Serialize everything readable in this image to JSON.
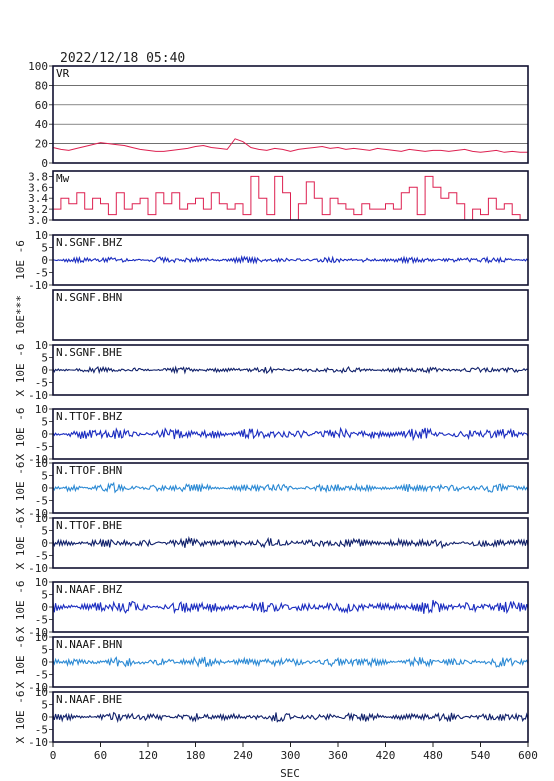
{
  "header": {
    "timestamp": "2022/12/18 05:40"
  },
  "chart_data": {
    "type": "line",
    "xlabel": "SEC",
    "xlim": [
      0,
      600
    ],
    "x_ticks": [
      "0",
      "60",
      "120",
      "180",
      "240",
      "300",
      "360",
      "420",
      "480",
      "540",
      "600"
    ],
    "panels": [
      {
        "id": "vr",
        "label": "VR",
        "ylabel": "",
        "ylim": [
          0,
          100
        ],
        "y_ticks": [
          "100",
          "80",
          "60",
          "40",
          "20",
          "0"
        ],
        "grid": true,
        "color": "#dd2050",
        "series": {
          "step": 10,
          "values": [
            16,
            14,
            13,
            15,
            17,
            19,
            21,
            20,
            19,
            18,
            16,
            14,
            13,
            12,
            12,
            13,
            14,
            15,
            17,
            18,
            16,
            15,
            14,
            25,
            22,
            16,
            14,
            13,
            15,
            14,
            12,
            14,
            15,
            16,
            17,
            15,
            16,
            14,
            15,
            14,
            13,
            15,
            14,
            13,
            12,
            14,
            13,
            12,
            13,
            13,
            12,
            13,
            14,
            12,
            11,
            12,
            13,
            11,
            12,
            11,
            11
          ]
        }
      },
      {
        "id": "mw",
        "label": "Mw",
        "ylabel": "",
        "ylim": [
          3.0,
          3.9
        ],
        "y_ticks": [
          "3.8",
          "3.6",
          "3.4",
          "3.2",
          "3.0"
        ],
        "grid": false,
        "color": "#dd2050",
        "series": {
          "step": 10,
          "values": [
            3.2,
            3.4,
            3.3,
            3.5,
            3.2,
            3.4,
            3.3,
            3.1,
            3.5,
            3.2,
            3.3,
            3.4,
            3.1,
            3.5,
            3.3,
            3.5,
            3.2,
            3.3,
            3.4,
            3.2,
            3.5,
            3.3,
            3.2,
            3.3,
            3.1,
            3.8,
            3.4,
            3.1,
            3.8,
            3.5,
            3.0,
            3.3,
            3.7,
            3.4,
            3.1,
            3.4,
            3.3,
            3.2,
            3.1,
            3.3,
            3.2,
            3.2,
            3.3,
            3.2,
            3.5,
            3.6,
            3.1,
            3.8,
            3.6,
            3.4,
            3.5,
            3.3,
            3.0,
            3.2,
            3.1,
            3.4,
            3.2,
            3.3,
            3.1,
            3.0,
            3.1
          ]
        }
      },
      {
        "id": "sgnf-bhz",
        "label": "N.SGNF.BHZ",
        "ylabel": "10E -6",
        "ylim": [
          -10,
          10
        ],
        "y_ticks": [
          "10",
          "5",
          "0",
          "-5",
          "-10"
        ],
        "grid": false,
        "color": "#1a2cc0",
        "amp": 0.8,
        "seed": 11
      },
      {
        "id": "sgnf-bhn",
        "label": "N.SGNF.BHN",
        "ylabel": "10E***",
        "ylim": [
          -10,
          10
        ],
        "y_ticks": [],
        "grid": false,
        "color": "#1a2cc0",
        "amp": 0,
        "seed": 12
      },
      {
        "id": "sgnf-bhe",
        "label": "N.SGNF.BHE",
        "ylabel": "X 10E -6",
        "ylim": [
          -10,
          10
        ],
        "y_ticks": [
          "10",
          "5",
          "0",
          "-5",
          "-10"
        ],
        "grid": false,
        "color": "#10206a",
        "amp": 0.8,
        "seed": 13
      },
      {
        "id": "ttof-bhz",
        "label": "N.TTOF.BHZ",
        "ylabel": "X 10E -6",
        "ylim": [
          -10,
          10
        ],
        "y_ticks": [
          "10",
          "5",
          "0",
          "-5",
          "-10"
        ],
        "grid": false,
        "color": "#1a2cc0",
        "amp": 1.6,
        "seed": 14
      },
      {
        "id": "ttof-bhn",
        "label": "N.TTOF.BHN",
        "ylabel": "X 10E -6",
        "ylim": [
          -10,
          10
        ],
        "y_ticks": [
          "10",
          "5",
          "0",
          "-5",
          "-10"
        ],
        "grid": false,
        "color": "#2c8ad4",
        "amp": 1.2,
        "seed": 15
      },
      {
        "id": "ttof-bhe",
        "label": "N.TTOF.BHE",
        "ylabel": "X 10E -6",
        "ylim": [
          -10,
          10
        ],
        "y_ticks": [
          "10",
          "5",
          "0",
          "-5",
          "-10"
        ],
        "grid": false,
        "color": "#10206a",
        "amp": 1.3,
        "seed": 16
      },
      {
        "id": "naaf-bhz",
        "label": "N.NAAF.BHZ",
        "ylabel": "X 10E -6",
        "ylim": [
          -10,
          10
        ],
        "y_ticks": [
          "10",
          "5",
          "0",
          "-5",
          "-10"
        ],
        "grid": false,
        "color": "#1a2cc0",
        "amp": 1.7,
        "seed": 17
      },
      {
        "id": "naaf-bhn",
        "label": "N.NAAF.BHN",
        "ylabel": "X 10E -6",
        "ylim": [
          -10,
          10
        ],
        "y_ticks": [
          "10",
          "5",
          "0",
          "-5",
          "-10"
        ],
        "grid": false,
        "color": "#2c8ad4",
        "amp": 1.3,
        "seed": 18
      },
      {
        "id": "naaf-bhe",
        "label": "N.NAAF.BHE",
        "ylabel": "X 10E -6",
        "ylim": [
          -10,
          10
        ],
        "y_ticks": [
          "10",
          "5",
          "0",
          "-5",
          "-10"
        ],
        "grid": false,
        "color": "#10206a",
        "amp": 1.2,
        "seed": 19
      }
    ]
  }
}
